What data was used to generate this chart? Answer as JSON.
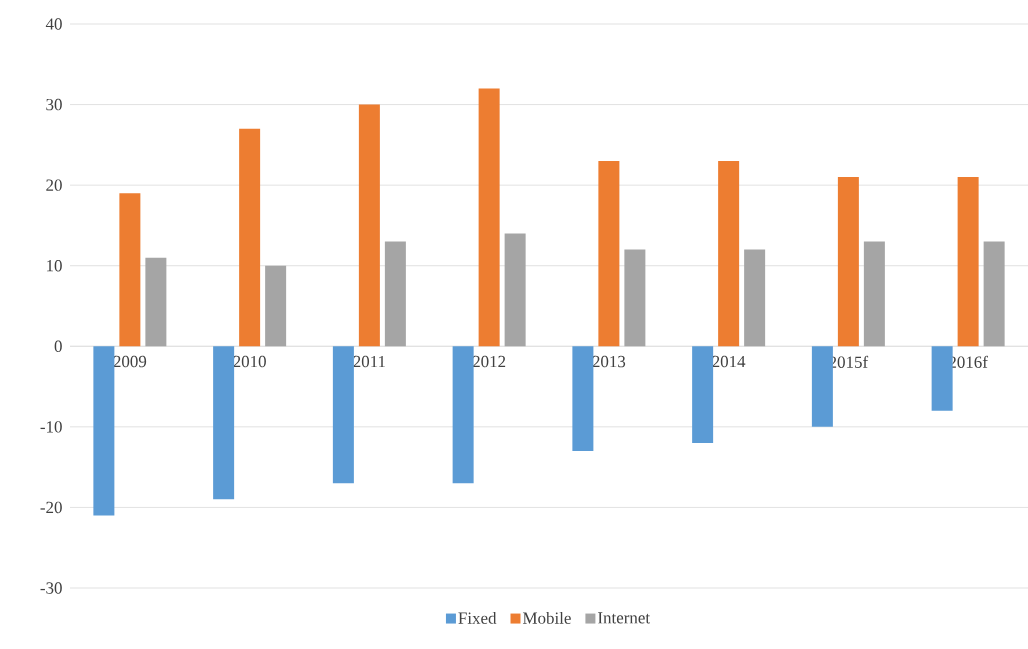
{
  "chart_data": {
    "type": "bar",
    "categories": [
      "2009",
      "2010",
      "2011",
      "2012",
      "2013",
      "2014",
      "2015f",
      "2016f"
    ],
    "series": [
      {
        "name": "Fixed",
        "color": "#5b9bd5",
        "values": [
          -21,
          -19,
          -17,
          -17,
          -13,
          -12,
          -10,
          -8
        ]
      },
      {
        "name": "Mobile",
        "color": "#ed7d31",
        "values": [
          19,
          27,
          30,
          32,
          23,
          23,
          21,
          21
        ]
      },
      {
        "name": "Internet",
        "color": "#a5a5a5",
        "values": [
          11,
          10,
          13,
          14,
          12,
          12,
          13,
          13
        ]
      }
    ],
    "ylim": [
      -30,
      40
    ],
    "yticks": [
      -30,
      -20,
      -10,
      0,
      10,
      20,
      30,
      40
    ],
    "grid": "y",
    "legend": "bottom"
  }
}
